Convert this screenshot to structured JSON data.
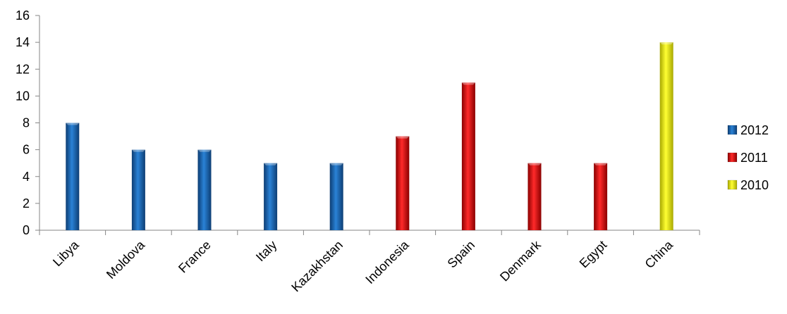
{
  "chart_data": {
    "type": "bar",
    "categories": [
      "Libya",
      "Moldova",
      "France",
      "Italy",
      "Kazakhstan",
      "Indonesia",
      "Spain",
      "Denmark",
      "Egypt",
      "China"
    ],
    "values": [
      8,
      6,
      6,
      5,
      5,
      7,
      11,
      5,
      5,
      14
    ],
    "year_of_bar": [
      "2012",
      "2012",
      "2012",
      "2012",
      "2012",
      "2011",
      "2011",
      "2011",
      "2011",
      "2010"
    ],
    "series": [
      {
        "name": "2012",
        "color": "#1f6fbf"
      },
      {
        "name": "2011",
        "color": "#ee1111"
      },
      {
        "name": "2010",
        "color": "#eeee00"
      }
    ],
    "yticks": [
      0,
      2,
      4,
      6,
      8,
      10,
      12,
      14,
      16
    ],
    "ylim": [
      0,
      16
    ],
    "title": "",
    "xlabel": "",
    "ylabel": "",
    "grid": false,
    "legend_position": "right"
  }
}
